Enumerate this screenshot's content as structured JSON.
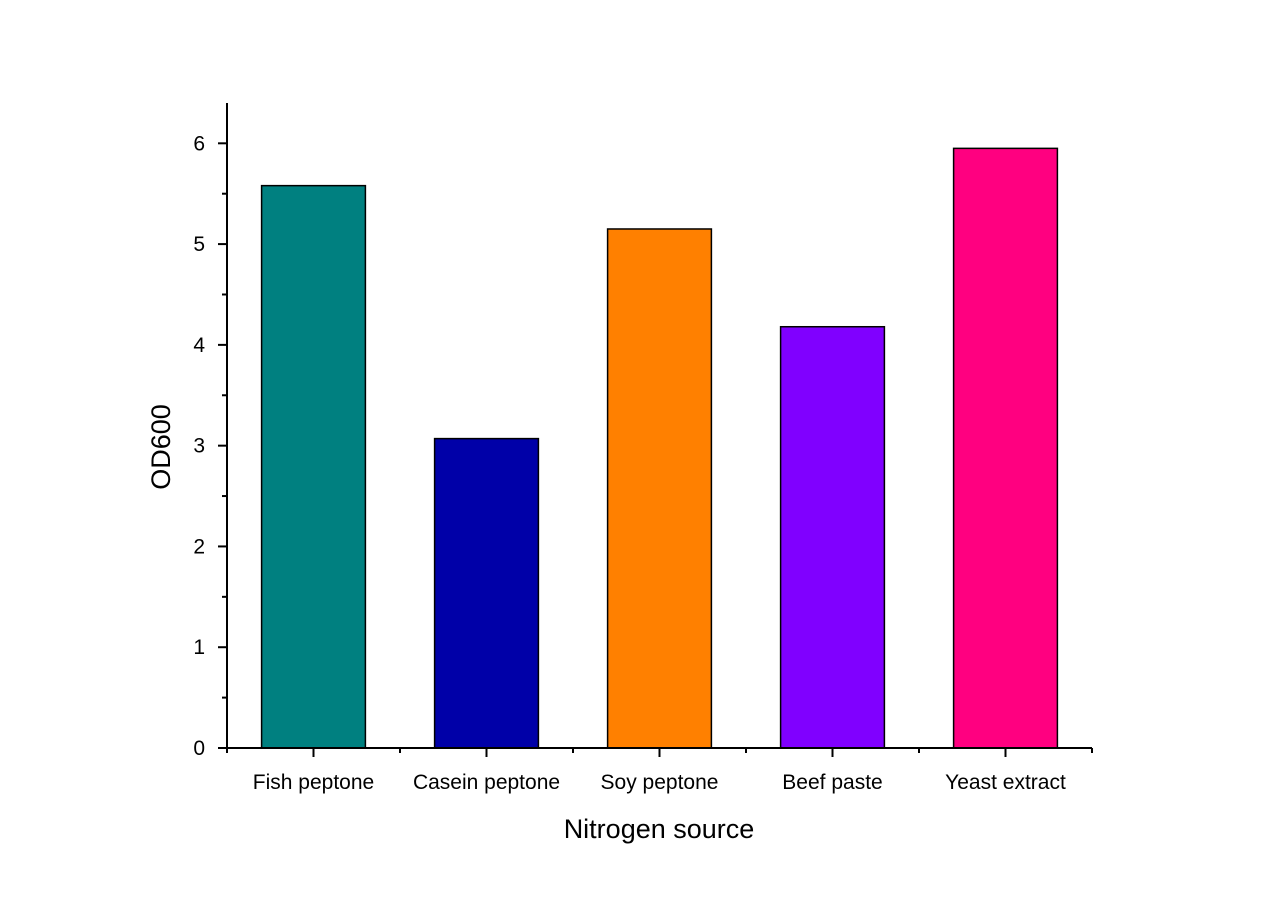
{
  "chart_data": {
    "type": "bar",
    "title": "",
    "xlabel": "Nitrogen source",
    "ylabel": "OD600",
    "categories": [
      "Fish peptone",
      "Casein peptone",
      "Soy peptone",
      "Beef paste",
      "Yeast extract"
    ],
    "values": [
      5.58,
      3.07,
      5.15,
      4.18,
      5.95
    ],
    "colors": [
      "#008080",
      "#0000A8",
      "#FF8000",
      "#8000FF",
      "#FF0080"
    ],
    "ylim": [
      0,
      6.4
    ],
    "yticks": [
      0,
      1,
      2,
      3,
      4,
      5,
      6
    ],
    "yticks_minor": [
      0.5,
      1.5,
      2.5,
      3.5,
      4.5,
      5.5
    ],
    "grid": false,
    "legend": "none"
  }
}
